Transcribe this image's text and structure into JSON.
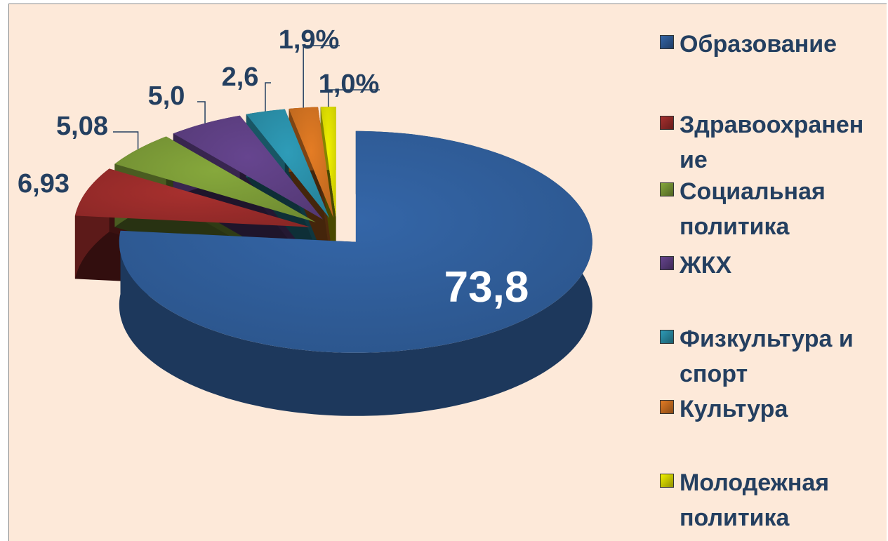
{
  "chart_data": {
    "type": "pie",
    "categories": [
      "Образование",
      "Здравоохранение",
      "Социальная политика",
      "ЖКХ",
      "Физкультура и спорт",
      "Культура",
      "Молодежная политика"
    ],
    "values": [
      73.8,
      6.93,
      5.08,
      5.0,
      2.6,
      1.9,
      1.0
    ],
    "value_labels": [
      "73,8",
      "6,93",
      "5,08",
      "5,0",
      "2,6",
      "1,9%",
      "1,0%"
    ],
    "colors": [
      "#3466a8",
      "#a8302e",
      "#86a83c",
      "#66458f",
      "#2e9cb8",
      "#e47c24",
      "#f2f200"
    ],
    "legend": "right"
  }
}
